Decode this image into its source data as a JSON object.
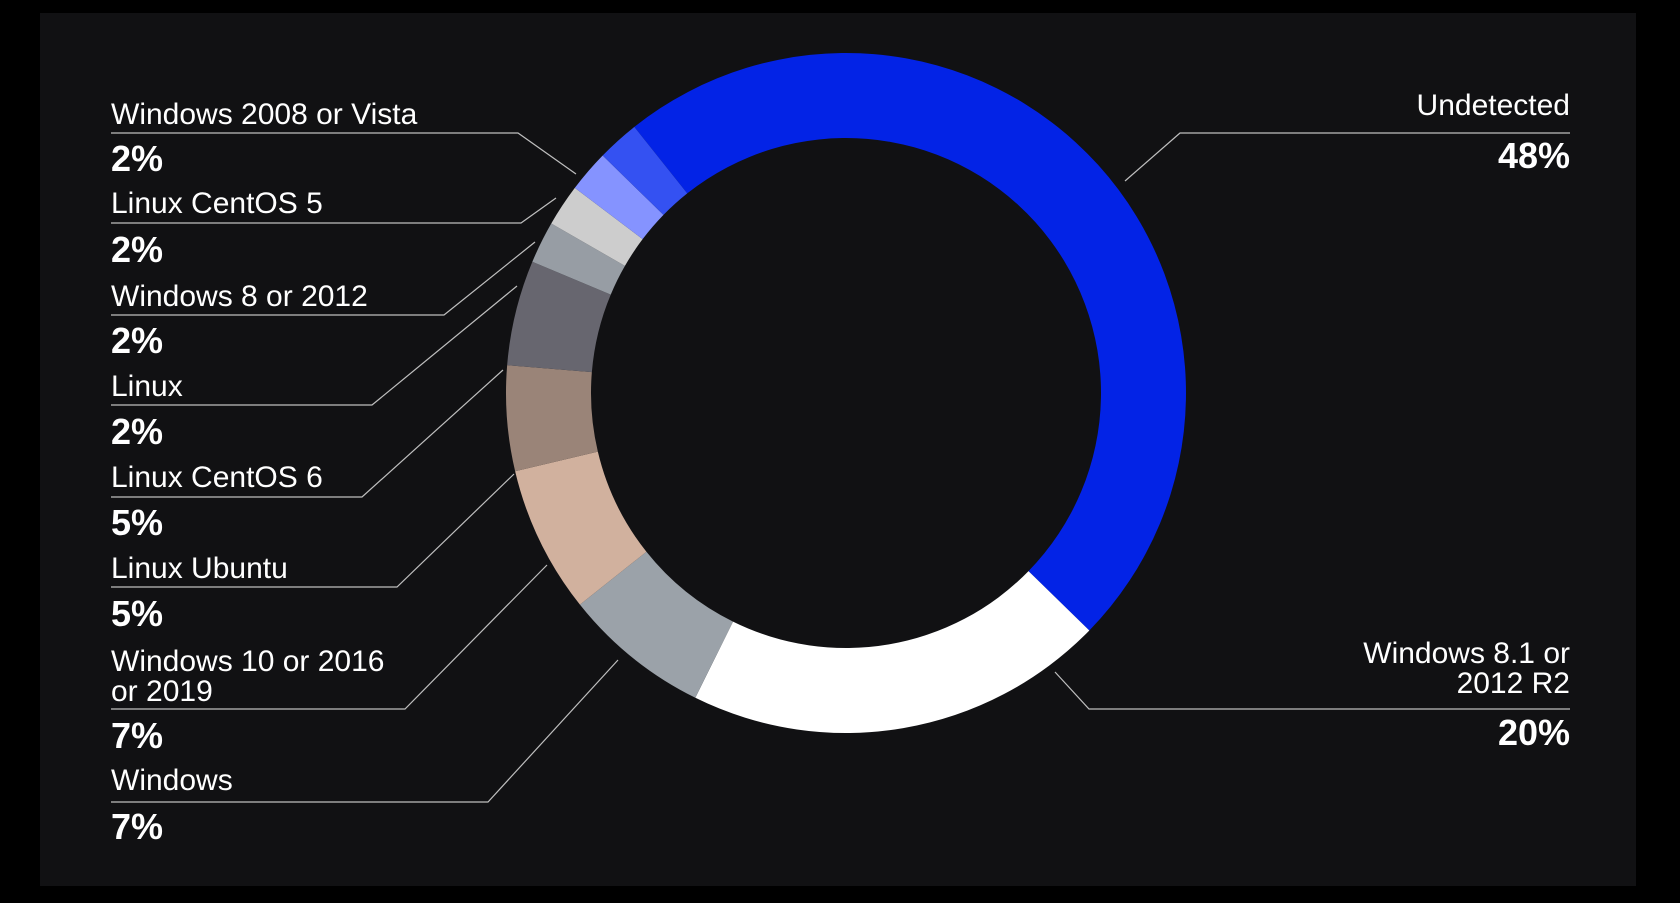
{
  "chart_data": {
    "type": "pie",
    "variant": "donut",
    "title": "",
    "legend": "none",
    "labels": [
      "Undetected",
      "Windows 8.1 or 2012 R2",
      "Windows",
      "Windows 10 or 2016 or 2019",
      "Linux Ubuntu",
      "Linux CentOS 6",
      "Linux",
      "Windows 8 or 2012",
      "Linux CentOS 5",
      "Windows 2008 or Vista"
    ],
    "values": [
      48,
      20,
      7,
      7,
      5,
      5,
      2,
      2,
      2,
      2
    ],
    "percent_labels": [
      "48%",
      "20%",
      "7%",
      "7%",
      "5%",
      "5%",
      "2%",
      "2%",
      "2%",
      "2%"
    ],
    "colors": [
      "#0323e6",
      "#ffffff",
      "#9ba2a9",
      "#d1b19e",
      "#9a8478",
      "#67666f",
      "#979da4",
      "#cdcdcd",
      "#8593ff",
      "#3451f2"
    ]
  }
}
